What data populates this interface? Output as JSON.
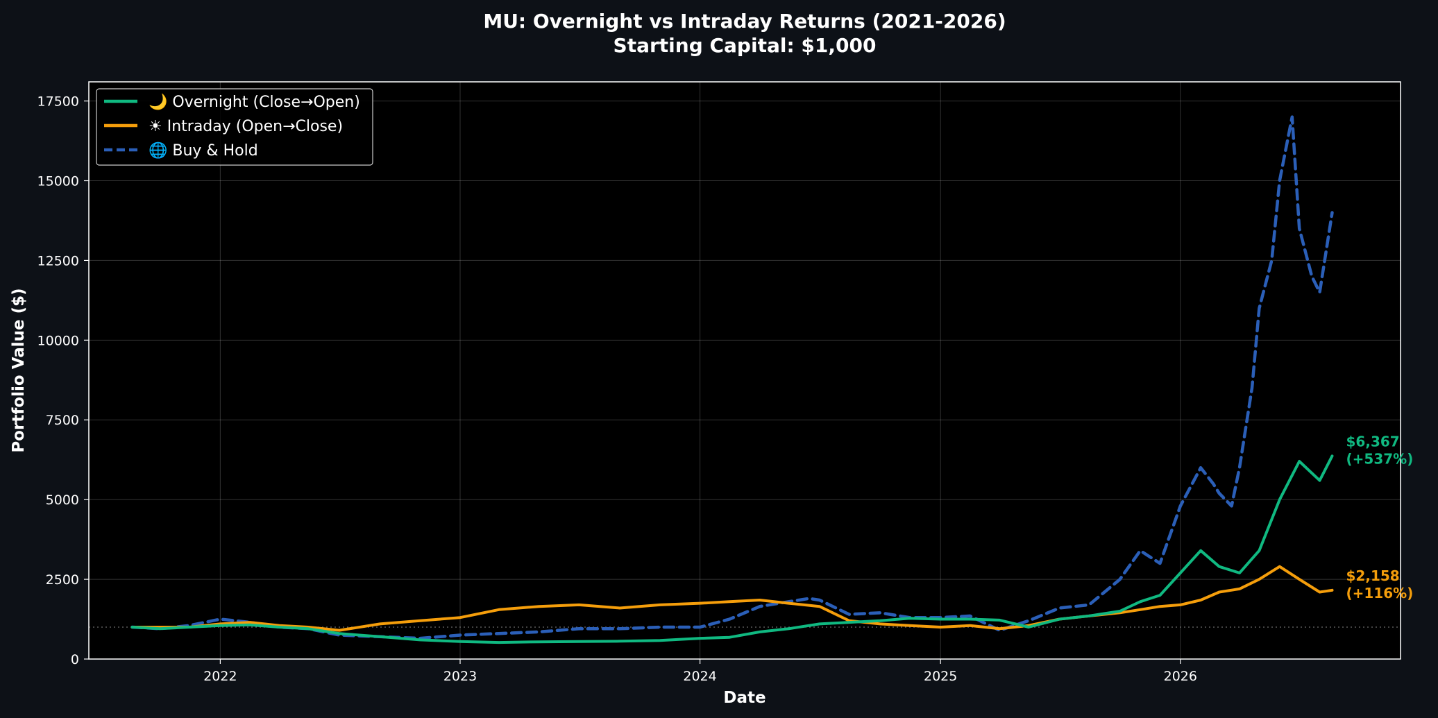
{
  "chart_data": {
    "type": "line",
    "title": "MU: Overnight vs Intraday Returns (2021-2026)",
    "subtitle": "Starting Capital: $1,000",
    "xlabel": "Date",
    "ylabel": "Portfolio Value ($)",
    "xlim": [
      "2021-06-15",
      "2026-12-02"
    ],
    "ylim": [
      0,
      18100
    ],
    "x_ticks": [
      "2022",
      "2023",
      "2024",
      "2025",
      "2026"
    ],
    "x_tick_dates": [
      "2022-01-01",
      "2023-01-01",
      "2024-01-01",
      "2025-01-01",
      "2026-01-01"
    ],
    "y_ticks": [
      "0",
      "2500",
      "5000",
      "7500",
      "10000",
      "12500",
      "15000",
      "17500"
    ],
    "y_tick_values": [
      0,
      2500,
      5000,
      7500,
      10000,
      12500,
      15000,
      17500
    ],
    "grid": true,
    "legend_position": "top-left",
    "baseline": 1000,
    "colors": {
      "background": "#0d1117",
      "plot_area": "#000000",
      "overnight": "#10b981",
      "intraday": "#f59e0b",
      "buyhold": "#2b5fb8"
    },
    "series": [
      {
        "name": "🌙 Overnight (Close→Open)",
        "style": "solid",
        "end_label": "$6,367\n(+537%)",
        "x": [
          "2021-08-20",
          "2021-10-01",
          "2021-11-15",
          "2022-01-01",
          "2022-02-15",
          "2022-04-01",
          "2022-05-15",
          "2022-07-01",
          "2022-09-01",
          "2022-11-01",
          "2023-01-01",
          "2023-03-01",
          "2023-05-01",
          "2023-07-01",
          "2023-09-01",
          "2023-11-01",
          "2024-01-01",
          "2024-02-15",
          "2024-04-01",
          "2024-05-15",
          "2024-07-01",
          "2024-08-15",
          "2024-10-01",
          "2024-11-15",
          "2025-01-01",
          "2025-02-15",
          "2025-04-01",
          "2025-05-15",
          "2025-07-01",
          "2025-08-15",
          "2025-10-01",
          "2025-11-01",
          "2025-12-01",
          "2026-01-01",
          "2026-02-01",
          "2026-03-01",
          "2026-04-01",
          "2026-05-01",
          "2026-06-01",
          "2026-07-01",
          "2026-08-01",
          "2026-08-20"
        ],
        "y": [
          1000,
          950,
          1000,
          1050,
          1070,
          1000,
          950,
          800,
          700,
          600,
          550,
          520,
          540,
          550,
          560,
          580,
          650,
          680,
          850,
          950,
          1100,
          1150,
          1200,
          1280,
          1250,
          1250,
          1220,
          1000,
          1250,
          1350,
          1500,
          1800,
          2000,
          2700,
          3400,
          2900,
          2700,
          3400,
          5000,
          6200,
          5600,
          6367
        ]
      },
      {
        "name": "☀ Intraday (Open→Close)",
        "style": "solid",
        "end_label": "$2,158\n(+116%)",
        "x": [
          "2021-08-20",
          "2021-10-01",
          "2021-11-15",
          "2022-01-01",
          "2022-02-15",
          "2022-04-01",
          "2022-05-15",
          "2022-07-01",
          "2022-09-01",
          "2022-11-01",
          "2023-01-01",
          "2023-03-01",
          "2023-05-01",
          "2023-07-01",
          "2023-09-01",
          "2023-11-01",
          "2024-01-01",
          "2024-02-15",
          "2024-04-01",
          "2024-05-15",
          "2024-07-01",
          "2024-08-15",
          "2024-10-01",
          "2024-11-15",
          "2025-01-01",
          "2025-02-15",
          "2025-04-01",
          "2025-05-15",
          "2025-07-01",
          "2025-08-15",
          "2025-10-01",
          "2025-11-01",
          "2025-12-01",
          "2026-01-01",
          "2026-02-01",
          "2026-03-01",
          "2026-04-01",
          "2026-05-01",
          "2026-06-01",
          "2026-07-01",
          "2026-08-01",
          "2026-08-20"
        ],
        "y": [
          1000,
          1000,
          1000,
          1100,
          1150,
          1050,
          1000,
          900,
          1100,
          1200,
          1300,
          1550,
          1650,
          1700,
          1600,
          1700,
          1750,
          1800,
          1850,
          1750,
          1650,
          1200,
          1100,
          1050,
          1000,
          1050,
          950,
          1050,
          1250,
          1350,
          1450,
          1550,
          1650,
          1700,
          1850,
          2100,
          2200,
          2500,
          2900,
          2500,
          2100,
          2158
        ]
      },
      {
        "name": "🌐 Buy & Hold",
        "style": "dashed",
        "x": [
          "2021-08-20",
          "2021-10-01",
          "2021-11-15",
          "2022-01-01",
          "2022-02-15",
          "2022-04-01",
          "2022-05-15",
          "2022-07-01",
          "2022-09-01",
          "2022-11-01",
          "2023-01-01",
          "2023-03-01",
          "2023-05-01",
          "2023-07-01",
          "2023-09-01",
          "2023-11-01",
          "2024-01-01",
          "2024-02-15",
          "2024-04-01",
          "2024-05-15",
          "2024-06-15",
          "2024-07-01",
          "2024-08-15",
          "2024-10-01",
          "2024-11-15",
          "2025-01-01",
          "2025-02-15",
          "2025-04-01",
          "2025-05-15",
          "2025-07-01",
          "2025-08-15",
          "2025-10-01",
          "2025-11-01",
          "2025-12-01",
          "2026-01-01",
          "2026-02-01",
          "2026-02-20",
          "2026-03-01",
          "2026-03-20",
          "2026-04-01",
          "2026-04-20",
          "2026-05-01",
          "2026-05-20",
          "2026-06-01",
          "2026-06-20",
          "2026-07-01",
          "2026-07-20",
          "2026-08-01",
          "2026-08-20"
        ],
        "y": [
          1000,
          950,
          1050,
          1250,
          1150,
          1000,
          950,
          750,
          700,
          650,
          750,
          800,
          850,
          950,
          950,
          1000,
          1000,
          1250,
          1650,
          1800,
          1900,
          1850,
          1400,
          1450,
          1300,
          1300,
          1350,
          900,
          1200,
          1600,
          1700,
          2500,
          3400,
          3000,
          4800,
          6000,
          5500,
          5200,
          4800,
          6000,
          8500,
          11000,
          12500,
          15000,
          17000,
          13500,
          12000,
          11500,
          14000
        ]
      }
    ]
  }
}
